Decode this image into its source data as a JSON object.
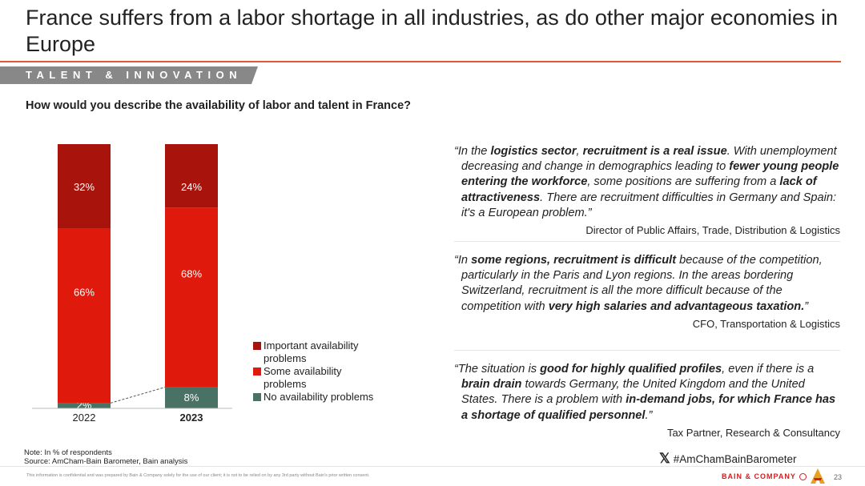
{
  "header": {
    "title": "France suffers from a labor shortage in all industries, as do other major economies in Europe",
    "section_tag": "TALENT & INNOVATION",
    "question": "How would you describe the availability of labor and talent in France?"
  },
  "chart_data": {
    "type": "bar",
    "stacked": true,
    "categories": [
      "2022",
      "2023"
    ],
    "series": [
      {
        "name": "No availability problems",
        "values": [
          2,
          8
        ],
        "labels": [
          "2%",
          "8%"
        ],
        "color": "#4a7264"
      },
      {
        "name": "Some availability problems",
        "values": [
          66,
          68
        ],
        "labels": [
          "66%",
          "68%"
        ],
        "color": "#e0190d"
      },
      {
        "name": "Important availability problems",
        "values": [
          32,
          24
        ],
        "labels": [
          "32%",
          "24%"
        ],
        "color": "#a8130b"
      }
    ],
    "ylim": [
      0,
      100
    ],
    "legend_position": "right"
  },
  "legend": [
    {
      "label": "Important availability problems",
      "color": "#a8130b"
    },
    {
      "label": "Some availability problems",
      "color": "#e0190d"
    },
    {
      "label": "No availability problems",
      "color": "#4a7264"
    }
  ],
  "quotes": [
    {
      "text_html": "“In the <b>logistics sector</b>, <b>recruitment is a real issue</b>. With unemployment decreasing and change in demographics leading to <b>fewer young people entering the workforce</b>, some positions are suffering from a <b>lack of attractiveness</b>. There are recruitment difficulties in Germany and Spain: it's a European problem.”",
      "source": "Director of Public Affairs, Trade, Distribution & Logistics"
    },
    {
      "text_html": "“In <b>some regions, recruitment is difficult</b> because of the competition, particularly in the Paris and Lyon regions. In the areas bordering Switzerland, recruitment is all the more difficult because of the competition with <b>very high salaries and advantageous taxation.</b>”",
      "source": "CFO, Transportation & Logistics"
    },
    {
      "text_html": "“The situation is <b>good for highly qualified profiles</b>, even if there is a <b>brain drain</b> towards Germany, the United Kingdom and the United States. There is a problem with <b>in-demand jobs, for which France has a shortage of qualified personnel</b>.”",
      "source": "Tax Partner, Research & Consultancy"
    }
  ],
  "footer": {
    "note_line1": "Note: In % of respondents",
    "note_line2": "Source: AmCham-Bain Barometer, Bain analysis",
    "hashtag": "#AmChamBainBarometer",
    "disclaimer": "This information is confidential and was prepared by Bain & Company solely for the use of our client; it is not to be relied on by any 3rd party without Bain's prior written consent.",
    "brand": "BAIN & COMPANY",
    "page_number": "23"
  },
  "colors": {
    "accent_rule": "#e05a3a",
    "section_tag_bg": "#888888",
    "brand_red": "#cc2222"
  }
}
